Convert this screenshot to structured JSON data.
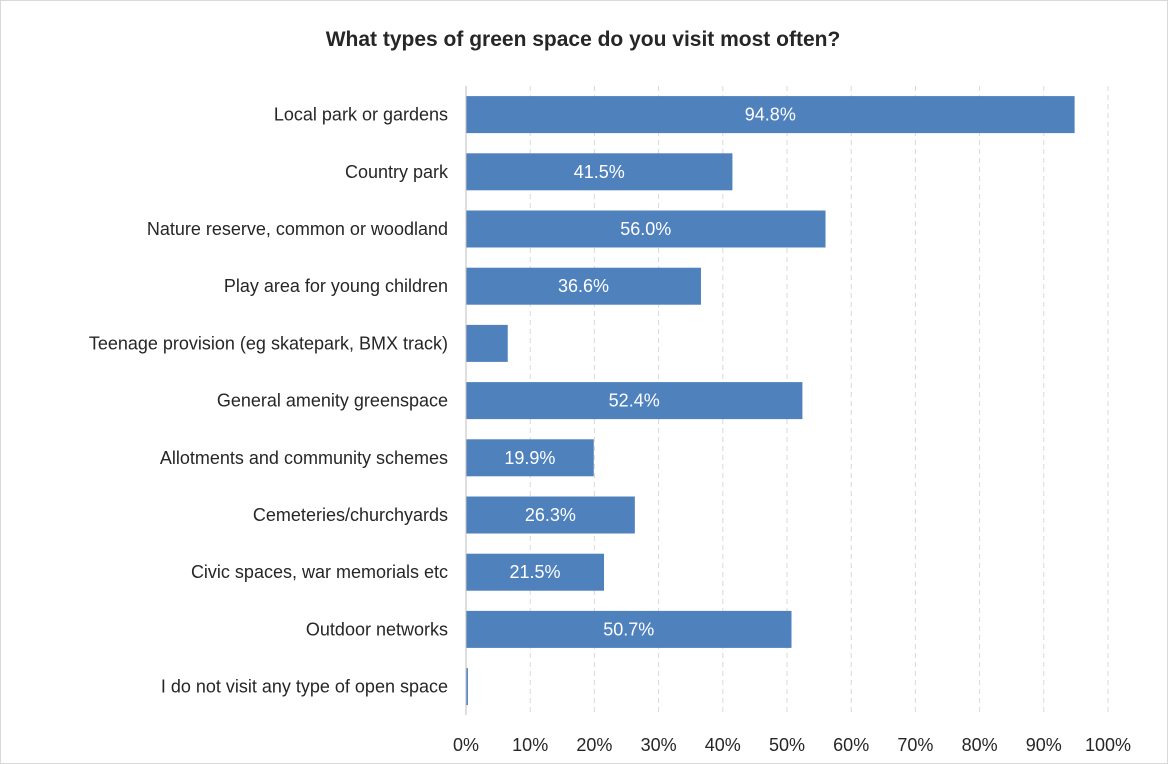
{
  "chart_data": {
    "type": "bar",
    "orientation": "horizontal",
    "title": "What types of green space do you visit most often?",
    "categories": [
      "Local park or gardens",
      "Country park",
      "Nature reserve, common or woodland",
      "Play area for young children",
      "Teenage provision (eg skatepark, BMX track)",
      "General amenity greenspace",
      "Allotments and community schemes",
      "Cemeteries/churchyards",
      "Civic spaces, war memorials etc",
      "Outdoor networks",
      "I do not visit any type of open space"
    ],
    "values": [
      94.8,
      41.5,
      56.0,
      36.6,
      6.5,
      52.4,
      19.9,
      26.3,
      21.5,
      50.7,
      0.3
    ],
    "data_labels": [
      "94.8%",
      "41.5%",
      "56.0%",
      "36.6%",
      "",
      "52.4%",
      "19.9%",
      "26.3%",
      "21.5%",
      "50.7%",
      ""
    ],
    "x_ticks": [
      "0%",
      "10%",
      "20%",
      "30%",
      "40%",
      "50%",
      "60%",
      "70%",
      "80%",
      "90%",
      "100%"
    ],
    "xlim": [
      0,
      100
    ],
    "grid": "vertical dashed",
    "legend": "none",
    "bar_color": "#4f81bd",
    "grid_color": "#d9d9d9"
  }
}
